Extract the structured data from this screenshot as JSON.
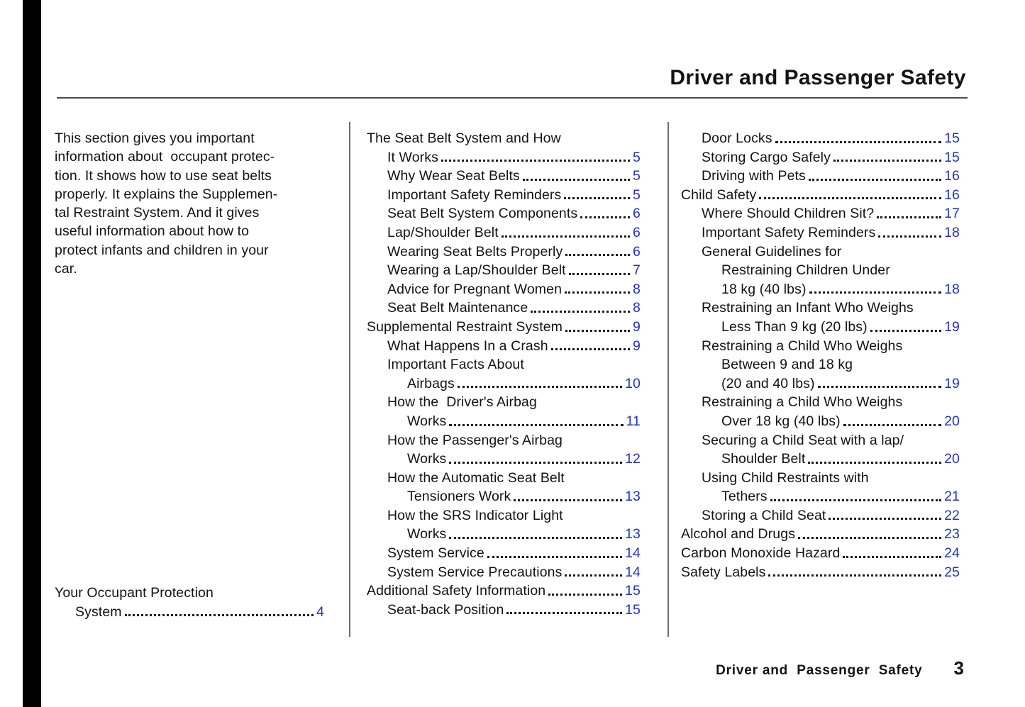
{
  "header": {
    "title": "Driver and Passenger Safety"
  },
  "colors": {
    "page_link_blue": "#2230cc",
    "section_tab_black": "#000000",
    "body_text": "#131313"
  },
  "intro": {
    "lines": [
      "This section gives you important",
      "information about  occupant protec-",
      "tion. It shows how to use seat belts",
      "properly. It explains the Supplemen-",
      "tal Restraint System. And it gives",
      "useful information about how to",
      "protect infants and children in your",
      "car."
    ]
  },
  "toc": {
    "left": [
      {
        "text": "Your Occupant Protection",
        "indent": 0,
        "page": null
      },
      {
        "text": "System",
        "indent": 1,
        "page": "4"
      }
    ],
    "middle": [
      {
        "text": "The Seat Belt System and How",
        "indent": 0,
        "page": null
      },
      {
        "text": "It Works",
        "indent": 1,
        "page": "5"
      },
      {
        "text": "Why Wear Seat Belts",
        "indent": 1,
        "page": "5"
      },
      {
        "text": "Important Safety Reminders",
        "indent": 1,
        "page": "5"
      },
      {
        "text": "Seat Belt System Components",
        "indent": 1,
        "page": "6"
      },
      {
        "text": "Lap/Shoulder Belt",
        "indent": 1,
        "page": "6"
      },
      {
        "text": "Wearing Seat Belts Properly",
        "indent": 1,
        "page": "6"
      },
      {
        "text": "Wearing a Lap/Shoulder Belt",
        "indent": 1,
        "page": "7"
      },
      {
        "text": "Advice for Pregnant Women",
        "indent": 1,
        "page": "8"
      },
      {
        "text": "Seat Belt Maintenance",
        "indent": 1,
        "page": "8"
      },
      {
        "text": "Supplemental Restraint System",
        "indent": 0,
        "page": "9"
      },
      {
        "text": "What Happens In a Crash",
        "indent": 1,
        "page": "9"
      },
      {
        "text": "Important Facts About",
        "indent": 1,
        "page": null
      },
      {
        "text": "Airbags",
        "indent": 2,
        "page": "10"
      },
      {
        "text": "How the  Driver's Airbag",
        "indent": 1,
        "page": null
      },
      {
        "text": "Works",
        "indent": 2,
        "page": "11"
      },
      {
        "text": "How the Passenger's Airbag",
        "indent": 1,
        "page": null
      },
      {
        "text": "Works",
        "indent": 2,
        "page": "12"
      },
      {
        "text": "How the Automatic Seat Belt",
        "indent": 1,
        "page": null
      },
      {
        "text": "Tensioners Work",
        "indent": 2,
        "page": "13"
      },
      {
        "text": "How the SRS Indicator Light",
        "indent": 1,
        "page": null
      },
      {
        "text": "Works",
        "indent": 2,
        "page": "13"
      },
      {
        "text": "System Service",
        "indent": 1,
        "page": "14"
      },
      {
        "text": "System Service Precautions",
        "indent": 1,
        "page": "14"
      },
      {
        "text": "Additional Safety Information",
        "indent": 0,
        "page": "15"
      },
      {
        "text": "Seat-back Position",
        "indent": 1,
        "page": "15"
      }
    ],
    "right": [
      {
        "text": "Door Locks",
        "indent": 1,
        "page": "15"
      },
      {
        "text": "Storing Cargo Safely",
        "indent": 1,
        "page": "15"
      },
      {
        "text": "Driving with Pets",
        "indent": 1,
        "page": "16"
      },
      {
        "text": "Child Safety",
        "indent": 0,
        "page": "16"
      },
      {
        "text": "Where Should Children Sit?",
        "indent": 1,
        "page": "17"
      },
      {
        "text": "Important Safety Reminders",
        "indent": 1,
        "page": "18"
      },
      {
        "text": "General Guidelines for",
        "indent": 1,
        "page": null
      },
      {
        "text": "Restraining Children Under",
        "indent": 2,
        "page": null
      },
      {
        "text": "18 kg (40 lbs)",
        "indent": 2,
        "page": "18"
      },
      {
        "text": "Restraining an Infant Who Weighs",
        "indent": 1,
        "page": null
      },
      {
        "text": "Less Than 9 kg (20 lbs)",
        "indent": 2,
        "page": "19"
      },
      {
        "text": "Restraining a Child Who Weighs",
        "indent": 1,
        "page": null
      },
      {
        "text": "Between 9 and 18 kg",
        "indent": 2,
        "page": null
      },
      {
        "text": "(20 and 40 lbs)",
        "indent": 2,
        "page": "19"
      },
      {
        "text": "Restraining a Child Who Weighs",
        "indent": 1,
        "page": null
      },
      {
        "text": "Over 18 kg (40 lbs)",
        "indent": 2,
        "page": "20"
      },
      {
        "text": "Securing a Child Seat with a lap/",
        "indent": 1,
        "page": null
      },
      {
        "text": "Shoulder Belt",
        "indent": 2,
        "page": "20"
      },
      {
        "text": "Using Child Restraints with",
        "indent": 1,
        "page": null
      },
      {
        "text": "Tethers",
        "indent": 2,
        "page": "21"
      },
      {
        "text": "Storing a Child Seat",
        "indent": 1,
        "page": "22"
      },
      {
        "text": "Alcohol and Drugs",
        "indent": 0,
        "page": "23"
      },
      {
        "text": "Carbon Monoxide Hazard",
        "indent": 0,
        "page": "24"
      },
      {
        "text": "Safety Labels",
        "indent": 0,
        "page": "25"
      }
    ]
  },
  "footer": {
    "label": "Driver and  Passenger  Safety",
    "page_number": "3"
  }
}
